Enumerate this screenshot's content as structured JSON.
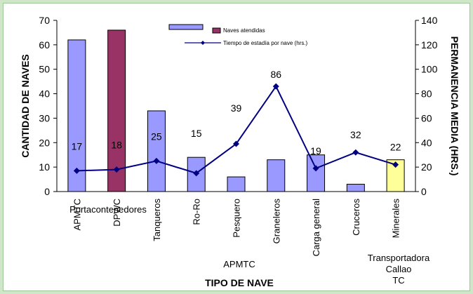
{
  "chart_data": {
    "type": "bar",
    "categories": [
      "APMTC",
      "DPWC",
      "Tanqueros",
      "Ro-Ro",
      "Pesquero",
      "Graneleros",
      "Carga general",
      "Cruceros",
      "Minerales"
    ],
    "group_labels": {
      "portacontenedores": "Portacontenedores",
      "apmtc": "APMTC",
      "transportadora": [
        "Transportadora",
        "Callao",
        "TC"
      ]
    },
    "series": [
      {
        "name": "Naves atendidas",
        "type": "bar",
        "axis": "left",
        "values": [
          62,
          66,
          33,
          14,
          6,
          13,
          15,
          3,
          13
        ],
        "colors": [
          "#9999ff",
          "#993366",
          "#9999ff",
          "#9999ff",
          "#9999ff",
          "#9999ff",
          "#9999ff",
          "#9999ff",
          "#ffff99"
        ]
      },
      {
        "name": "Tiempo de estadía por nave (hrs.)",
        "type": "line",
        "axis": "right",
        "values": [
          17,
          18,
          25,
          15,
          39,
          86,
          19,
          32,
          22
        ],
        "labels": [
          "17",
          "18",
          "25",
          "15",
          "39",
          "86",
          "19",
          "32",
          "22"
        ],
        "color": "#000080"
      }
    ],
    "legend_bar_color": "#9999ff",
    "ylabel": "CANTIDAD DE NAVES",
    "y2label": "PERMANENCIA MEDIA (HRS.)",
    "xlabel": "TIPO DE NAVE",
    "ylim": [
      0,
      70
    ],
    "y2lim": [
      0,
      140
    ],
    "yticks": [
      "0",
      "10",
      "20",
      "30",
      "40",
      "50",
      "60",
      "70"
    ],
    "y2ticks": [
      "0",
      "20",
      "40",
      "60",
      "80",
      "100",
      "120",
      "140"
    ],
    "legend_position": "top"
  }
}
